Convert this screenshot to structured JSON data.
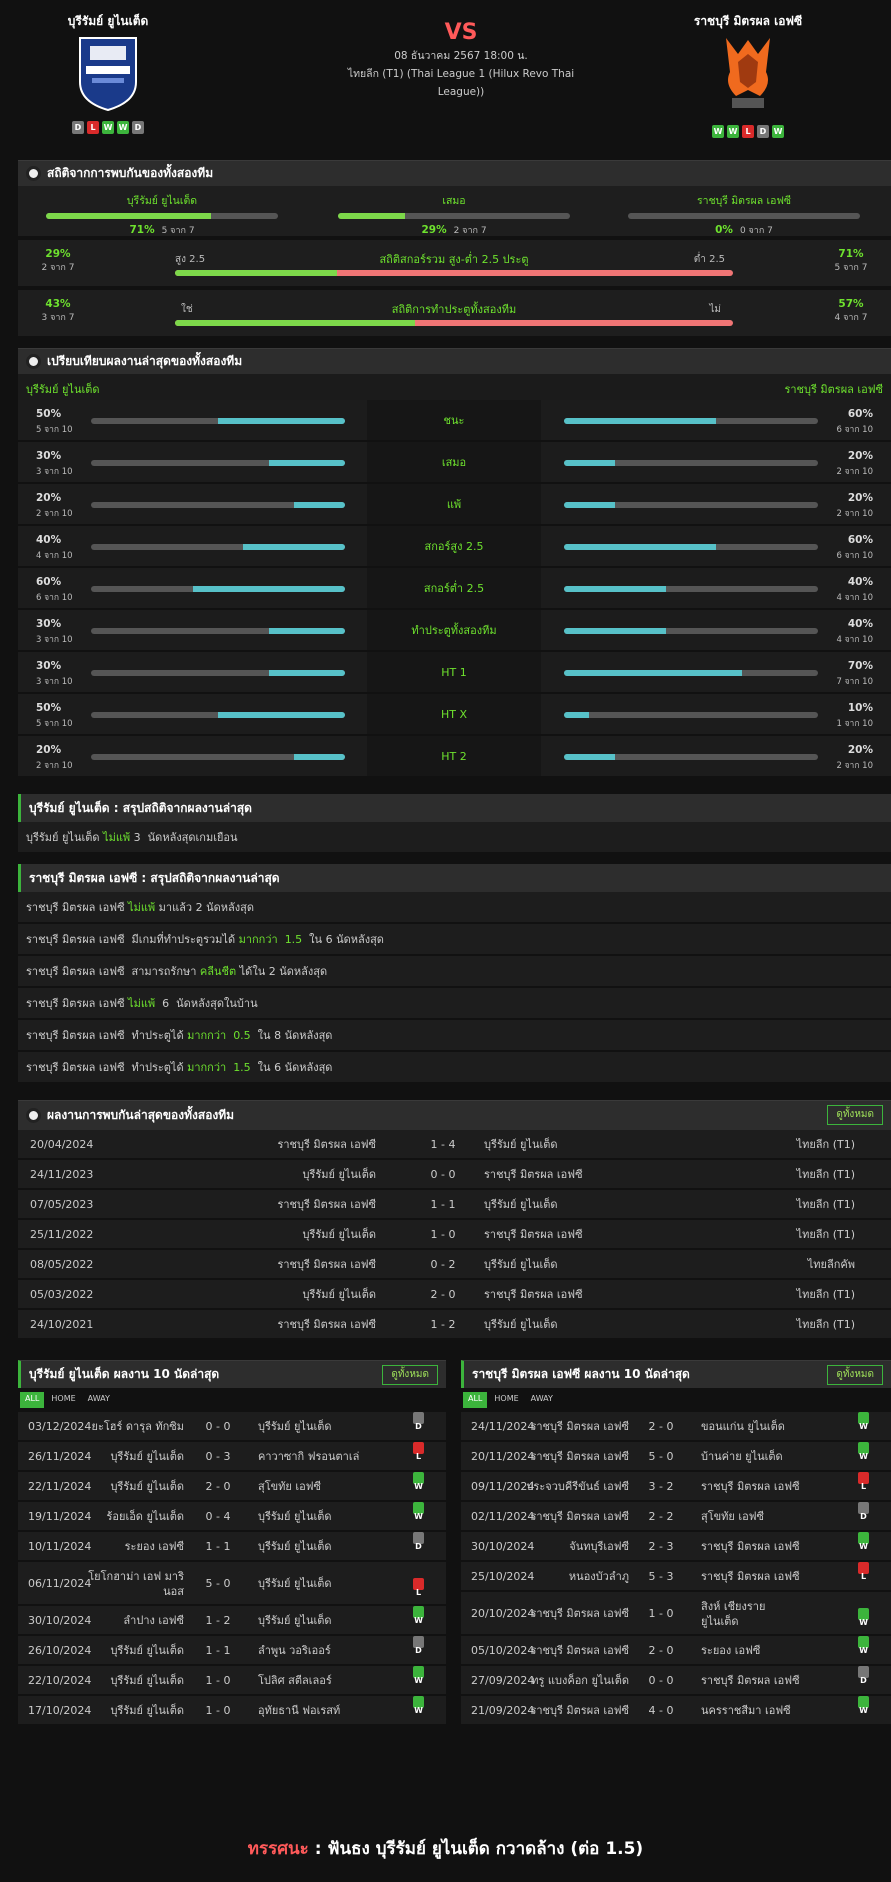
{
  "header": {
    "home": {
      "name": "บุรีรัมย์ ยูไนเต็ด",
      "form": [
        "D",
        "L",
        "W",
        "W",
        "D"
      ]
    },
    "away": {
      "name": "ราชบุรี มิตรผล เอฟซี",
      "form": [
        "W",
        "W",
        "L",
        "D",
        "W"
      ]
    },
    "vs": "VS",
    "date": "08 ธันวาคม 2567 18:00 น.",
    "league_l1": "ไทยลีก (T1) (Thai League 1 (Hilux Revo Thai",
    "league_l2": "League))"
  },
  "h2h_stats": {
    "title": "สถิติจากการพบกันของทั้งสองทีม",
    "cols": [
      {
        "label": "บุรีรัมย์ ยูไนเต็ด",
        "pct": "71%",
        "sub": "5 จาก 7",
        "fill": 0.71
      },
      {
        "label": "เสมอ",
        "pct": "29%",
        "sub": "2 จาก 7",
        "fill": 0.29
      },
      {
        "label": "ราชบุรี มิตรผล เอฟซี",
        "pct": "0%",
        "sub": "0 จาก 7",
        "fill": 0.0
      }
    ],
    "ou": {
      "title": "สถิติสกอร์รวม สูง-ต่ำ 2.5 ประตู",
      "left_label": "สูง 2.5",
      "right_label": "ต่ำ 2.5",
      "left_pct": "29%",
      "left_sub": "2 จาก 7",
      "right_pct": "71%",
      "right_sub": "5 จาก 7",
      "fill": 0.29
    },
    "btts": {
      "title": "สถิติการทำประตูทั้งสองทีม",
      "left_label": "ใช่",
      "right_label": "ไม่",
      "left_pct": "43%",
      "left_sub": "3 จาก 7",
      "right_pct": "57%",
      "right_sub": "4 จาก 7",
      "fill": 0.43
    }
  },
  "compare": {
    "title": "เปรียบเทียบผลงานล่าสุดของทั้งสองทีม",
    "home": "บุรีรัมย์ ยูไนเต็ด",
    "away": "ราชบุรี มิตรผล เอฟซี",
    "rows": [
      {
        "label": "ชนะ",
        "hp": "50%",
        "hs": "5 จาก 10",
        "hf": 0.5,
        "ap": "60%",
        "as": "6 จาก 10",
        "af": 0.6
      },
      {
        "label": "เสมอ",
        "hp": "30%",
        "hs": "3 จาก 10",
        "hf": 0.3,
        "ap": "20%",
        "as": "2 จาก 10",
        "af": 0.2
      },
      {
        "label": "แพ้",
        "hp": "20%",
        "hs": "2 จาก 10",
        "hf": 0.2,
        "ap": "20%",
        "as": "2 จาก 10",
        "af": 0.2
      },
      {
        "label": "สกอร์สูง 2.5",
        "hp": "40%",
        "hs": "4 จาก 10",
        "hf": 0.4,
        "ap": "60%",
        "as": "6 จาก 10",
        "af": 0.6
      },
      {
        "label": "สกอร์ต่ำ 2.5",
        "hp": "60%",
        "hs": "6 จาก 10",
        "hf": 0.6,
        "ap": "40%",
        "as": "4 จาก 10",
        "af": 0.4
      },
      {
        "label": "ทำประตูทั้งสองทีม",
        "hp": "30%",
        "hs": "3 จาก 10",
        "hf": 0.3,
        "ap": "40%",
        "as": "4 จาก 10",
        "af": 0.4
      },
      {
        "label": "HT 1",
        "hp": "30%",
        "hs": "3 จาก 10",
        "hf": 0.3,
        "ap": "70%",
        "as": "7 จาก 10",
        "af": 0.7
      },
      {
        "label": "HT X",
        "hp": "50%",
        "hs": "5 จาก 10",
        "hf": 0.5,
        "ap": "10%",
        "as": "1 จาก 10",
        "af": 0.1
      },
      {
        "label": "HT 2",
        "hp": "20%",
        "hs": "2 จาก 10",
        "hf": 0.2,
        "ap": "20%",
        "as": "2 จาก 10",
        "af": 0.2
      }
    ]
  },
  "summary_home": {
    "title": "บุรีรัมย์ ยูไนเต็ด : สรุปสถิติจากผลงานล่าสุด",
    "rows": [
      {
        "a": "บุรีรัมย์ ยูไนเต็ด ",
        "b": "ไม่แพ้",
        "c": " 3  นัดหลังสุดเกมเยือน"
      }
    ]
  },
  "summary_away": {
    "title": "ราชบุรี มิตรผล เอฟซี : สรุปสถิติจากผลงานล่าสุด",
    "rows": [
      {
        "a": "ราชบุรี มิตรผล เอฟซี ",
        "b": "ไม่แพ้",
        "c": " มาแล้ว 2 นัดหลังสุด"
      },
      {
        "a": "ราชบุรี มิตรผล เอฟซี  มีเกมที่ทำประตูรวมได้ ",
        "b": "มากกว่า  1.5",
        "c": "  ใน 6 นัดหลังสุด"
      },
      {
        "a": "ราชบุรี มิตรผล เอฟซี  สามารถรักษา ",
        "b": "คลีนชีต",
        "c": " ได้ใน 2 นัดหลังสุด"
      },
      {
        "a": "ราชบุรี มิตรผล เอฟซี ",
        "b": "ไม่แพ้",
        "c": "  6  นัดหลังสุดในบ้าน"
      },
      {
        "a": "ราชบุรี มิตรผล เอฟซี  ทำประตูได้ ",
        "b": "มากกว่า  0.5",
        "c": "  ใน 8 นัดหลังสุด"
      },
      {
        "a": "ราชบุรี มิตรผล เอฟซี  ทำประตูได้ ",
        "b": "มากกว่า  1.5",
        "c": "  ใน 6 นัดหลังสุด"
      }
    ]
  },
  "meetings": {
    "title": "ผลงานการพบกันล่าสุดของทั้งสองทีม",
    "btn": "ดูทั้งหมด",
    "rows": [
      {
        "d": "20/04/2024",
        "h": "ราชบุรี มิตรผล เอฟซี",
        "s": "1 - 4",
        "a": "บุรีรัมย์ ยูไนเต็ด",
        "l": "ไทยลีก (T1)"
      },
      {
        "d": "24/11/2023",
        "h": "บุรีรัมย์ ยูไนเต็ด",
        "s": "0 - 0",
        "a": "ราชบุรี มิตรผล เอฟซี",
        "l": "ไทยลีก (T1)"
      },
      {
        "d": "07/05/2023",
        "h": "ราชบุรี มิตรผล เอฟซี",
        "s": "1 - 1",
        "a": "บุรีรัมย์ ยูไนเต็ด",
        "l": "ไทยลีก (T1)"
      },
      {
        "d": "25/11/2022",
        "h": "บุรีรัมย์ ยูไนเต็ด",
        "s": "1 - 0",
        "a": "ราชบุรี มิตรผล เอฟซี",
        "l": "ไทยลีก (T1)"
      },
      {
        "d": "08/05/2022",
        "h": "ราชบุรี มิตรผล เอฟซี",
        "s": "0 - 2",
        "a": "บุรีรัมย์ ยูไนเต็ด",
        "l": "ไทยลีกคัพ"
      },
      {
        "d": "05/03/2022",
        "h": "บุรีรัมย์ ยูไนเต็ด",
        "s": "2 - 0",
        "a": "ราชบุรี มิตรผล เอฟซี",
        "l": "ไทยลีก (T1)"
      },
      {
        "d": "24/10/2021",
        "h": "ราชบุรี มิตรผล เอฟซี",
        "s": "1 - 2",
        "a": "บุรีรัมย์ ยูไนเต็ด",
        "l": "ไทยลีก (T1)"
      }
    ]
  },
  "last10_home": {
    "title": "บุรีรัมย์ ยูไนเต็ด ผลงาน 10 นัดล่าสุด",
    "btn": "ดูทั้งหมด",
    "tabs": [
      "ALL",
      "HOME",
      "AWAY"
    ],
    "rows": [
      {
        "d": "03/12/2024",
        "h": "ยะโฮร์ ดารุล ทักซิม",
        "s": "0 - 0",
        "a": "บุรีรัมย์ ยูไนเต็ด",
        "r": "D"
      },
      {
        "d": "26/11/2024",
        "h": "บุรีรัมย์ ยูไนเต็ด",
        "s": "0 - 3",
        "a": "คาวาซากิ ฟรอนตาเล่",
        "r": "L"
      },
      {
        "d": "22/11/2024",
        "h": "บุรีรัมย์ ยูไนเต็ด",
        "s": "2 - 0",
        "a": "สุโขทัย เอฟซี",
        "r": "W"
      },
      {
        "d": "19/11/2024",
        "h": "ร้อยเอ็ด ยูไนเต็ด",
        "s": "0 - 4",
        "a": "บุรีรัมย์ ยูไนเต็ด",
        "r": "W"
      },
      {
        "d": "10/11/2024",
        "h": "ระยอง เอฟซี",
        "s": "1 - 1",
        "a": "บุรีรัมย์ ยูไนเต็ด",
        "r": "D"
      },
      {
        "d": "06/11/2024",
        "h": "โยโกฮาม่า เอฟ มาริ",
        "h2": "นอส",
        "s": "5 - 0",
        "a": "บุรีรัมย์ ยูไนเต็ด",
        "r": "L"
      },
      {
        "d": "30/10/2024",
        "h": "ลำปาง เอฟซี",
        "s": "1 - 2",
        "a": "บุรีรัมย์ ยูไนเต็ด",
        "r": "W"
      },
      {
        "d": "26/10/2024",
        "h": "บุรีรัมย์ ยูไนเต็ด",
        "s": "1 - 1",
        "a": "ลำพูน วอริเออร์",
        "r": "D"
      },
      {
        "d": "22/10/2024",
        "h": "บุรีรัมย์ ยูไนเต็ด",
        "s": "1 - 0",
        "a": "โปลิศ สตีลเลอร์",
        "r": "W"
      },
      {
        "d": "17/10/2024",
        "h": "บุรีรัมย์ ยูไนเต็ด",
        "s": "1 - 0",
        "a": "อุทัยธานี ฟอเรสท์",
        "r": "W"
      }
    ]
  },
  "last10_away": {
    "title": "ราชบุรี มิตรผล เอฟซี ผลงาน 10 นัดล่าสุด",
    "btn": "ดูทั้งหมด",
    "tabs": [
      "ALL",
      "HOME",
      "AWAY"
    ],
    "rows": [
      {
        "d": "24/11/2024",
        "h": "ราชบุรี มิตรผล เอฟซี",
        "s": "2 - 0",
        "a": "ขอนแก่น ยูไนเต็ด",
        "r": "W"
      },
      {
        "d": "20/11/2024",
        "h": "ราชบุรี มิตรผล เอฟซี",
        "s": "5 - 0",
        "a": "บ้านค่าย ยูไนเต็ด",
        "r": "W"
      },
      {
        "d": "09/11/2024",
        "h": "ประจวบคีรีขันธ์ เอฟซี",
        "s": "3 - 2",
        "a": "ราชบุรี มิตรผล เอฟซี",
        "r": "L"
      },
      {
        "d": "02/11/2024",
        "h": "ราชบุรี มิตรผล เอฟซี",
        "s": "2 - 2",
        "a": "สุโขทัย เอฟซี",
        "r": "D"
      },
      {
        "d": "30/10/2024",
        "h": "จันทบุรีเอฟซี",
        "s": "2 - 3",
        "a": "ราชบุรี มิตรผล เอฟซี",
        "r": "W"
      },
      {
        "d": "25/10/2024",
        "h": "หนองบัวลำภู",
        "s": "5 - 3",
        "a": "ราชบุรี มิตรผล เอฟซี",
        "r": "L"
      },
      {
        "d": "20/10/2024",
        "h": "ราชบุรี มิตรผล เอฟซี",
        "s": "1 - 0",
        "a": "สิงห์ เชียงราย",
        "a2": "ยูไนเต็ด",
        "r": "W"
      },
      {
        "d": "05/10/2024",
        "h": "ราชบุรี มิตรผล เอฟซี",
        "s": "2 - 0",
        "a": "ระยอง เอฟซี",
        "r": "W"
      },
      {
        "d": "27/09/2024",
        "h": "ทรู แบงค็อก ยูไนเต็ด",
        "s": "0 - 0",
        "a": "ราชบุรี มิตรผล เอฟซี",
        "r": "D"
      },
      {
        "d": "21/09/2024",
        "h": "ราชบุรี มิตรผล เอฟซี",
        "s": "4 - 0",
        "a": "นครราชสีมา เอฟซี",
        "r": "W"
      }
    ]
  },
  "verdict": {
    "label": "ทรรศนะ",
    "colon": " :  ",
    "text": "ฟันธง บุรีรัมย์ ยูไนเต็ด กวาดล้าง (ต่อ 1.5)"
  },
  "colors": {
    "accent": "#3cb43c",
    "green_text": "#6ee22e",
    "red": "#ff5a5a",
    "bar_teal": "#57c1c8",
    "bar_salmon": "#f07575"
  }
}
